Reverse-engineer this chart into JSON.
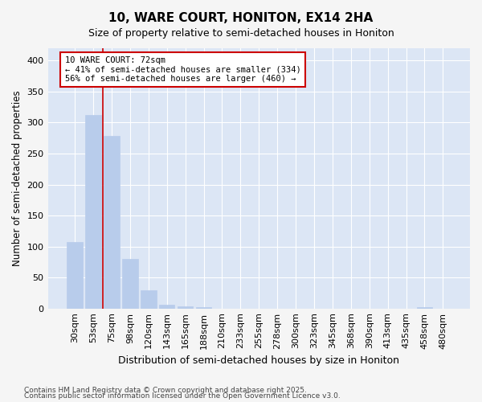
{
  "title": "10, WARE COURT, HONITON, EX14 2HA",
  "subtitle": "Size of property relative to semi-detached houses in Honiton",
  "xlabel": "Distribution of semi-detached houses by size in Honiton",
  "ylabel": "Number of semi-detached properties",
  "categories": [
    "30sqm",
    "53sqm",
    "75sqm",
    "98sqm",
    "120sqm",
    "143sqm",
    "165sqm",
    "188sqm",
    "210sqm",
    "233sqm",
    "255sqm",
    "278sqm",
    "300sqm",
    "323sqm",
    "345sqm",
    "368sqm",
    "390sqm",
    "413sqm",
    "435sqm",
    "458sqm",
    "480sqm"
  ],
  "values": [
    107,
    312,
    278,
    80,
    29,
    6,
    3,
    2,
    0,
    0,
    0,
    0,
    0,
    0,
    0,
    0,
    0,
    0,
    0,
    2,
    0
  ],
  "bar_color": "#b8cceb",
  "bar_edge_color": "#b8cceb",
  "plot_bg_color": "#dce6f5",
  "fig_bg_color": "#f5f5f5",
  "grid_color": "#ffffff",
  "red_line_x": 2,
  "red_line_color": "#cc0000",
  "annotation_text": "10 WARE COURT: 72sqm\n← 41% of semi-detached houses are smaller (334)\n56% of semi-detached houses are larger (460) →",
  "annotation_box_facecolor": "#ffffff",
  "annotation_box_edgecolor": "#cc0000",
  "footnote1": "Contains HM Land Registry data © Crown copyright and database right 2025.",
  "footnote2": "Contains public sector information licensed under the Open Government Licence v3.0.",
  "ylim": [
    0,
    420
  ],
  "yticks": [
    0,
    50,
    100,
    150,
    200,
    250,
    300,
    350,
    400
  ]
}
